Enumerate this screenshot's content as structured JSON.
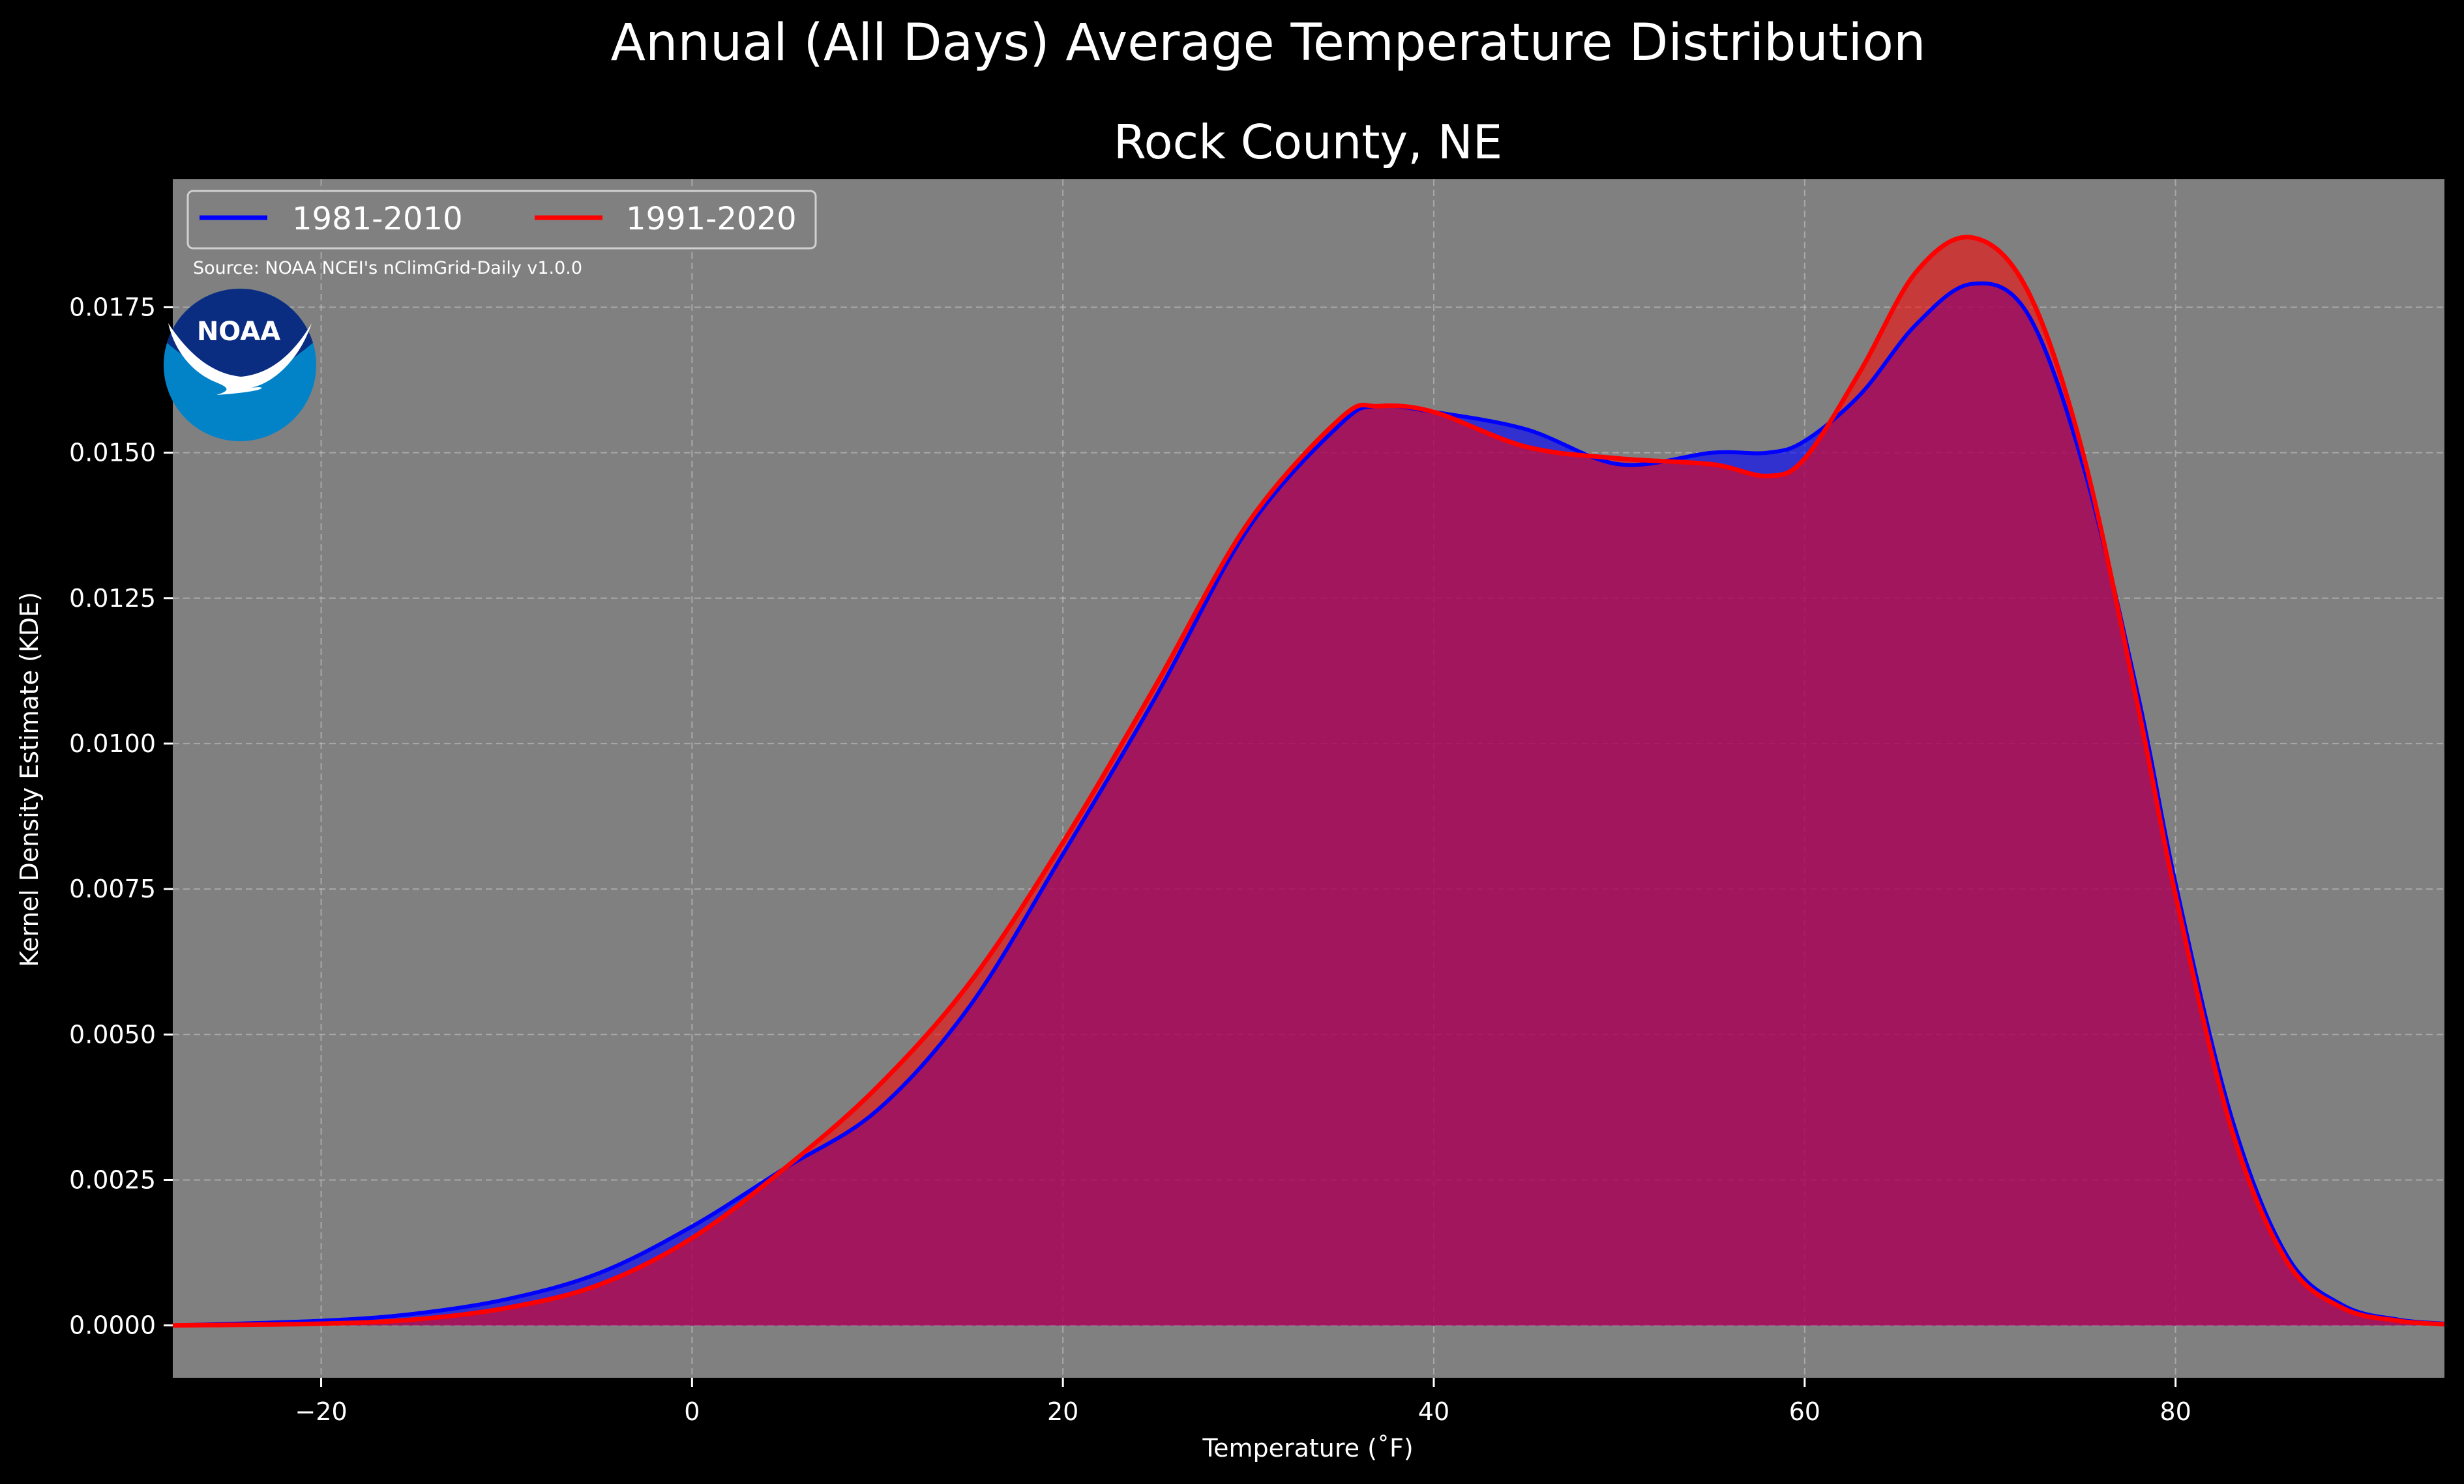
{
  "chart_data": {
    "type": "area",
    "suptitle": "Annual (All Days) Average Temperature Distribution",
    "title": "Rock County, NE",
    "xlabel": "Temperature (˚F)",
    "ylabel": "Kernel Density Estimate (KDE)",
    "xlim": [
      -28,
      94.5
    ],
    "ylim": [
      -0.0009,
      0.0197
    ],
    "xticks": [
      -20,
      0,
      20,
      40,
      60,
      80
    ],
    "xtick_labels": [
      "−20",
      "0",
      "20",
      "40",
      "60",
      "80"
    ],
    "yticks": [
      0.0,
      0.0025,
      0.005,
      0.0075,
      0.01,
      0.0125,
      0.015,
      0.0175
    ],
    "ytick_labels": [
      "0.0000",
      "0.0025",
      "0.0050",
      "0.0075",
      "0.0100",
      "0.0125",
      "0.0150",
      "0.0175"
    ],
    "grid": true,
    "legend_placement": "top-left",
    "source": "Source: NOAA NCEI's nClimGrid-Daily v1.0.0",
    "logo_text": "NOAA",
    "colors": {
      "background": "#000000",
      "plot_background": "#808080",
      "fill_overlap": "#9e1f5c",
      "logo_blue_dark": "#0a2d82",
      "logo_blue_light": "#0283c8"
    },
    "series": [
      {
        "name": "1981-2010",
        "color": "#0000ff",
        "x": [
          -28,
          -20,
          -15,
          -10,
          -5,
          0,
          5,
          10,
          15,
          20,
          25,
          30,
          35,
          37,
          40,
          45,
          50,
          55,
          58,
          60,
          63,
          66,
          69,
          72,
          75,
          78,
          80,
          83,
          86,
          89,
          92,
          94.5
        ],
        "y": [
          0.0,
          8e-05,
          0.0002,
          0.00045,
          0.0009,
          0.0017,
          0.0027,
          0.0037,
          0.0055,
          0.0081,
          0.0108,
          0.0137,
          0.0155,
          0.0158,
          0.0157,
          0.0154,
          0.0148,
          0.015,
          0.015,
          0.0152,
          0.016,
          0.0172,
          0.0179,
          0.0174,
          0.0148,
          0.0108,
          0.0076,
          0.0036,
          0.0012,
          0.00035,
          0.0001,
          3e-05
        ]
      },
      {
        "name": "1991-2020",
        "color": "#ff0000",
        "x": [
          -28,
          -20,
          -15,
          -10,
          -5,
          0,
          5,
          10,
          15,
          20,
          25,
          30,
          35,
          37,
          40,
          45,
          50,
          55,
          58,
          60,
          63,
          66,
          69,
          72,
          75,
          78,
          80,
          83,
          86,
          89,
          92,
          94.5
        ],
        "y": [
          0.0,
          3e-05,
          0.0001,
          0.0003,
          0.0007,
          0.0015,
          0.0027,
          0.0041,
          0.0059,
          0.0083,
          0.011,
          0.0138,
          0.0156,
          0.0158,
          0.0157,
          0.0151,
          0.0149,
          0.0148,
          0.0146,
          0.0149,
          0.0164,
          0.0181,
          0.0187,
          0.0178,
          0.015,
          0.0106,
          0.0074,
          0.0034,
          0.0011,
          0.0003,
          8e-05,
          2e-05
        ]
      }
    ]
  }
}
